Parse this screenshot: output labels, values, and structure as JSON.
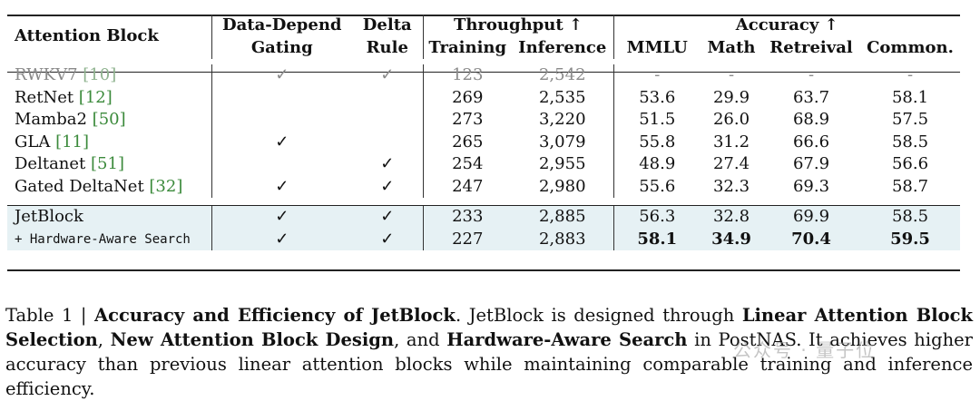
{
  "table": {
    "col_headers": {
      "attention_block": "Attention Block",
      "gating_line1": "Data-Depend",
      "gating_line2": "Gating",
      "delta_line1": "Delta",
      "delta_line2": "Rule",
      "throughput": "Throughput ↑",
      "training": "Training",
      "inference": "Inference",
      "accuracy": "Accuracy ↑",
      "mmlu": "MMLU",
      "math": "Math",
      "retreival": "Retreival",
      "common": "Common."
    },
    "rows": [
      {
        "name": "RWKV7 ",
        "cite": "[10]",
        "gating": "✓",
        "delta": "✓",
        "training": "123",
        "inference": "2,542",
        "mmlu": "-",
        "math": "-",
        "retreival": "-",
        "common": "-"
      },
      {
        "name": "RetNet ",
        "cite": "[12]",
        "gating": "",
        "delta": "",
        "training": "269",
        "inference": "2,535",
        "mmlu": "53.6",
        "math": "29.9",
        "retreival": "63.7",
        "common": "58.1"
      },
      {
        "name": "Mamba2 ",
        "cite": "[50]",
        "gating": "",
        "delta": "",
        "training": "273",
        "inference": "3,220",
        "mmlu": "51.5",
        "math": "26.0",
        "retreival": "68.9",
        "common": "57.5"
      },
      {
        "name": "GLA ",
        "cite": "[11]",
        "gating": "✓",
        "delta": "",
        "training": "265",
        "inference": "3,079",
        "mmlu": "55.8",
        "math": "31.2",
        "retreival": "66.6",
        "common": "58.5"
      },
      {
        "name": "Deltanet ",
        "cite": "[51]",
        "gating": "",
        "delta": "✓",
        "training": "254",
        "inference": "2,955",
        "mmlu": "48.9",
        "math": "27.4",
        "retreival": "67.9",
        "common": "56.6"
      },
      {
        "name": "Gated DeltaNet ",
        "cite": "[32]",
        "gating": "✓",
        "delta": "✓",
        "training": "247",
        "inference": "2,980",
        "mmlu": "55.6",
        "math": "32.3",
        "retreival": "69.3",
        "common": "58.7"
      }
    ],
    "ours": [
      {
        "name": "JetBlock",
        "gating": "✓",
        "delta": "✓",
        "training": "233",
        "inference": "2,885",
        "mmlu": "56.3",
        "math": "32.8",
        "retreival": "69.9",
        "common": "58.5"
      },
      {
        "name": "+ Hardware-Aware Search",
        "gating": "✓",
        "delta": "✓",
        "training": "227",
        "inference": "2,883",
        "mmlu": "58.1",
        "math": "34.9",
        "retreival": "70.4",
        "common": "59.5"
      }
    ]
  },
  "caption": {
    "prefix": "Table 1 | ",
    "title": "Accuracy and Efficiency of JetBlock",
    "t1": ". JetBlock is designed through ",
    "b1": "Linear Attention Block Selection",
    "t2": ", ",
    "b2": "New Attention Block Design",
    "t3": ", and ",
    "b3": "Hardware-Aware Search",
    "t4": " in PostNAS. It achieves higher accuracy than previous linear attention blocks while maintaining comparable training and inference efficiency."
  },
  "watermark": "公众号 · 量子位"
}
